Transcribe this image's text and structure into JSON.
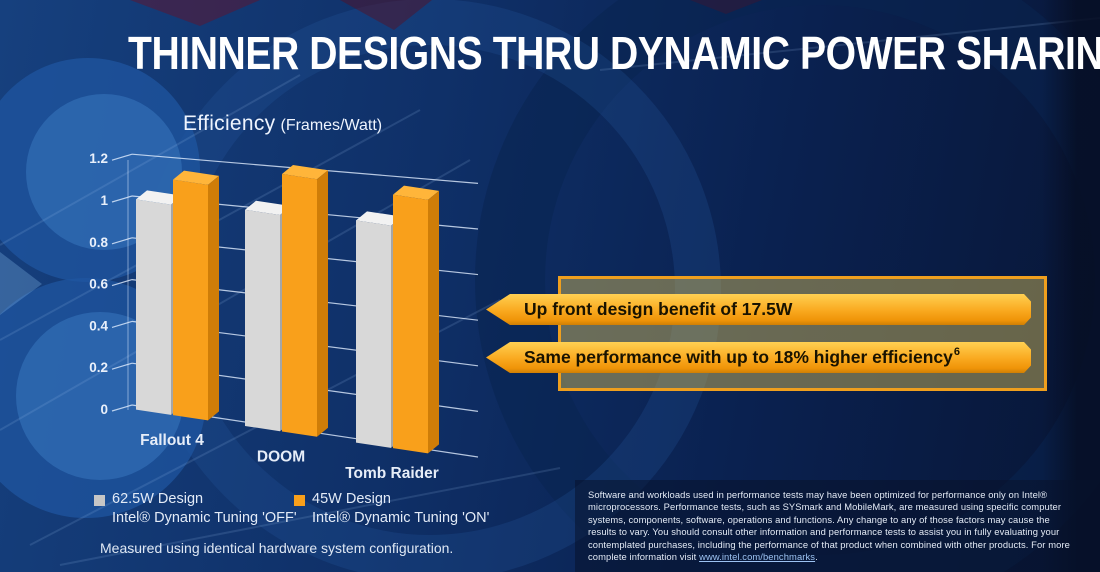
{
  "title": "THINNER DESIGNS THRU DYNAMIC POWER SHARING",
  "chart": {
    "title": "Efficiency",
    "subtitle": "(Frames/Watt)"
  },
  "chart_data": {
    "type": "bar",
    "style": "3d",
    "title": "Efficiency (Frames/Watt)",
    "categories": [
      "Fallout 4",
      "DOOM",
      "Tomb Raider"
    ],
    "series": [
      {
        "name": "62.5W Design Intel® Dynamic Tuning 'OFF'",
        "color_front": "#d8d8d8",
        "color_top": "#f2f2f2",
        "color_side": "#a6a6a6",
        "values": [
          1.0,
          1.0,
          1.0
        ]
      },
      {
        "name": "45W Design Intel® Dynamic Tuning 'ON'",
        "color_front": "#f9a01b",
        "color_top": "#ffb53a",
        "color_side": "#cf7d08",
        "values": [
          1.11,
          1.18,
          1.13
        ]
      }
    ],
    "xlabel": "",
    "ylabel": "Efficiency (Frames/Watt)",
    "ylim": [
      0,
      1.2
    ],
    "yticks": [
      0,
      0.2,
      0.4,
      0.6,
      0.8,
      1.0,
      1.2
    ],
    "grid": true,
    "legend_position": "bottom-left"
  },
  "callouts": [
    {
      "text": "Up front design benefit of 17.5W",
      "sup": ""
    },
    {
      "text": "Same performance with up to 18% higher efficiency",
      "sup": "6"
    }
  ],
  "legend": [
    {
      "line1": "62.5W Design",
      "line2": "Intel® Dynamic Tuning 'OFF'",
      "color": "#c6c6c6"
    },
    {
      "line1": "45W Design",
      "line2": "Intel® Dynamic Tuning 'ON'",
      "color": "#f9a01b"
    }
  ],
  "note": "Measured using identical hardware system configuration.",
  "disclaimer": {
    "text": "Software and workloads used in performance tests may have been optimized for performance only on Intel® microprocessors. Performance tests, such as SYSmark and MobileMark, are measured using specific computer systems, components, software, operations and functions. Any change to any of those factors may cause the results to vary. You should consult other information and performance tests to assist you in fully evaluating your contemplated purchases, including the performance of that product when combined with other products. For more complete information visit ",
    "link": "www.intel.com/benchmarks",
    "after": "."
  },
  "accent_colors": {
    "orange": "#f9a01b",
    "banner_border": "#ef9f1e",
    "background_blue": "#0f3068"
  }
}
